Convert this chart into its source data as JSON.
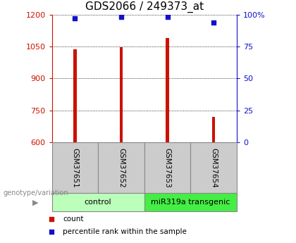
{
  "title": "GDS2066 / 249373_at",
  "samples": [
    "GSM37651",
    "GSM37652",
    "GSM37653",
    "GSM37654"
  ],
  "bar_values": [
    1037,
    1045,
    1090,
    720
  ],
  "percentile_values": [
    97,
    98,
    98,
    94
  ],
  "ylim_left": [
    600,
    1200
  ],
  "ylim_right": [
    0,
    100
  ],
  "yticks_left": [
    600,
    750,
    900,
    1050,
    1200
  ],
  "yticks_right": [
    0,
    25,
    50,
    75,
    100
  ],
  "bar_color": "#cc1100",
  "dot_color": "#1111cc",
  "bar_bottom": 600,
  "groups": [
    {
      "label": "control",
      "samples": [
        0,
        1
      ],
      "color": "#bbffbb"
    },
    {
      "label": "miR319a transgenic",
      "samples": [
        2,
        3
      ],
      "color": "#44ee44"
    }
  ],
  "group_label_prefix": "genotype/variation",
  "legend_count_label": "count",
  "legend_percentile_label": "percentile rank within the sample",
  "background_color": "#ffffff",
  "plot_bg_color": "#ffffff",
  "label_area_color": "#cccccc",
  "title_fontsize": 11,
  "tick_fontsize": 8,
  "bar_width": 0.07
}
